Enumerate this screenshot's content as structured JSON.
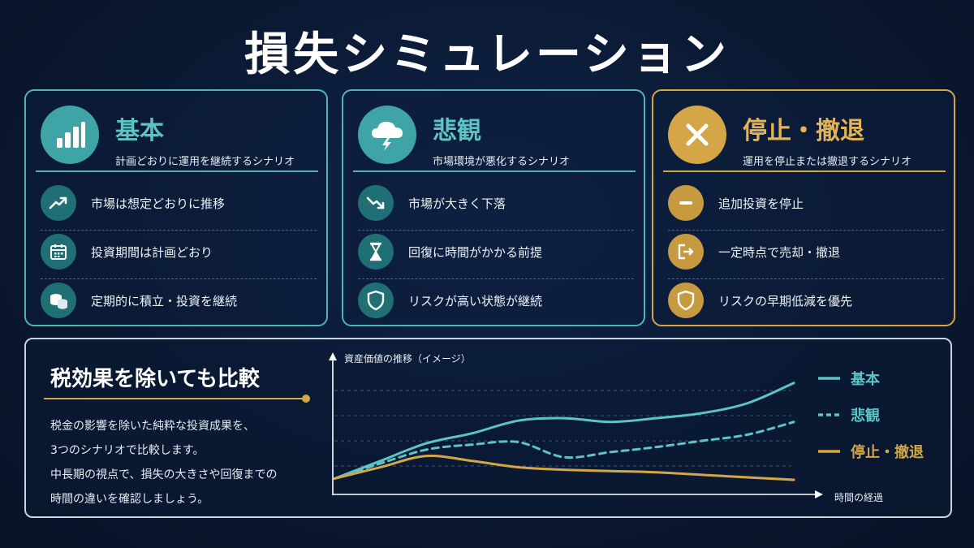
{
  "title": "損失シミュレーション",
  "cards": [
    {
      "title": "基本",
      "subtitle": "計画どおりに運用を継続するシナリオ",
      "icon": "bar-chart-icon",
      "items": [
        {
          "label": "市場は想定どおりに推移",
          "icon": "trend-up-icon"
        },
        {
          "label": "投資期間は計画どおり",
          "icon": "calendar-icon"
        },
        {
          "label": "定期的に積立・投資を継続",
          "icon": "coins-icon"
        }
      ]
    },
    {
      "title": "悲観",
      "subtitle": "市場環境が悪化するシナリオ",
      "icon": "storm-cloud-icon",
      "items": [
        {
          "label": "市場が大きく下落",
          "icon": "trend-down-icon"
        },
        {
          "label": "回復に時間がかかる前提",
          "icon": "hourglass-icon"
        },
        {
          "label": "リスクが高い状態が継続",
          "icon": "shield-icon"
        }
      ]
    },
    {
      "title": "停止・撤退",
      "subtitle": "運用を停止または撤退するシナリオ",
      "icon": "close-icon",
      "items": [
        {
          "label": "追加投資を停止",
          "icon": "minus-icon"
        },
        {
          "label": "一定時点で売却・撤退",
          "icon": "exit-icon"
        },
        {
          "label": "リスクの早期低減を優先",
          "icon": "shield-icon"
        }
      ]
    }
  ],
  "bottom": {
    "title": "税効果を除いても比較",
    "lines": [
      "税金の影響を除いた純粋な投資成果を、",
      "3つのシナリオで比較します。",
      "中長期の視点で、損失の大きさや回復までの",
      "時間の違いを確認しましょう。"
    ]
  },
  "colors": {
    "teal": "#5cc4c3",
    "gold": "#d4a648",
    "background": "#0b1a33"
  },
  "chart_data": {
    "type": "line",
    "ylabel": "資産価値の推移（イメージ）",
    "xlabel": "時間の経過",
    "x": [
      0,
      1,
      2,
      3,
      4,
      5,
      6,
      7,
      8,
      9,
      10
    ],
    "ylim": [
      0,
      10
    ],
    "grid": true,
    "legend_position": "right",
    "series": [
      {
        "name": "基本",
        "style": "solid",
        "color": "#5cc4c3",
        "values": [
          1.0,
          2.4,
          3.8,
          4.6,
          5.6,
          5.8,
          5.5,
          5.8,
          6.2,
          7.0,
          8.6
        ]
      },
      {
        "name": "悲観",
        "style": "dashed",
        "color": "#5cc4c3",
        "values": [
          1.0,
          2.2,
          3.3,
          3.7,
          3.9,
          2.7,
          3.1,
          3.5,
          4.0,
          4.5,
          5.5
        ]
      },
      {
        "name": "停止・撤退",
        "style": "solid",
        "color": "#d4a648",
        "values": [
          1.0,
          1.9,
          2.8,
          2.4,
          1.9,
          1.7,
          1.6,
          1.5,
          1.3,
          1.1,
          0.9
        ]
      }
    ]
  }
}
